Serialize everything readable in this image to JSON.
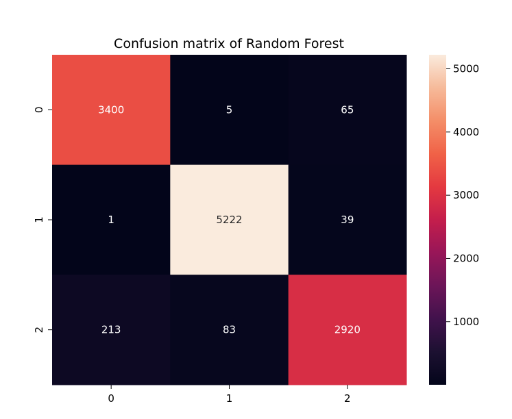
{
  "chart_data": {
    "type": "heatmap",
    "title": "Confusion matrix of Random Forest",
    "xlabel": "",
    "ylabel": "",
    "x_categories": [
      "0",
      "1",
      "2"
    ],
    "y_categories": [
      "0",
      "1",
      "2"
    ],
    "values": [
      [
        3400,
        5,
        65
      ],
      [
        1,
        5222,
        39
      ],
      [
        213,
        83,
        2920
      ]
    ],
    "colormap": "rocket",
    "colorbar": {
      "range": [
        1,
        5222
      ],
      "ticks": [
        1000,
        2000,
        3000,
        4000,
        5000
      ],
      "tick_labels": [
        "1000",
        "2000",
        "3000",
        "4000",
        "5000"
      ]
    },
    "annotation_colors": {
      "on_dark": "#ffffff",
      "on_light": "#262626"
    },
    "grid": false,
    "legend": "colorbar-right"
  }
}
